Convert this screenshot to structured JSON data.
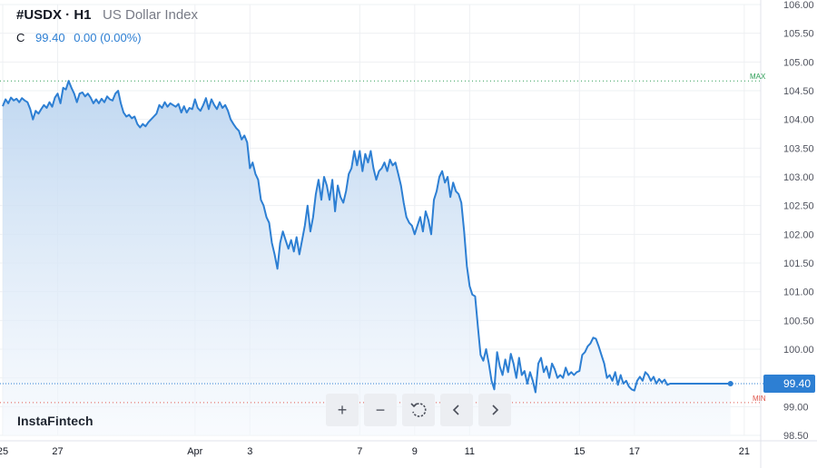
{
  "header": {
    "symbol": "#USDX · H1",
    "description": "US Dollar Index",
    "close_label": "C",
    "close_value": "99.40",
    "change": "0.00 (0.00%)"
  },
  "brand": "InstaFintech",
  "markers": {
    "max_label": "MAX",
    "min_label": "MIN",
    "last_price": "99.40"
  },
  "toolbar": {
    "buttons": [
      {
        "name": "zoom-in-button",
        "glyph": "+"
      },
      {
        "name": "zoom-out-button",
        "glyph": "−"
      },
      {
        "name": "reset-button",
        "icon": "reset-icon"
      },
      {
        "name": "scroll-left-button",
        "icon": "chevron-left-icon"
      },
      {
        "name": "scroll-right-button",
        "icon": "chevron-right-icon"
      }
    ]
  },
  "colors": {
    "line": "#2d7fd3",
    "area_top": "#bcd5f0",
    "area_bottom": "#f4f8fd",
    "grid": "#eef0f3",
    "max": "#2e9e57",
    "min": "#e0584d"
  },
  "chart_data": {
    "type": "area",
    "y_ticks": [
      "106.00",
      "105.50",
      "105.00",
      "104.50",
      "104.00",
      "103.50",
      "103.00",
      "102.50",
      "102.00",
      "101.50",
      "101.00",
      "100.50",
      "100.00",
      "99.50",
      "99.00",
      "98.50"
    ],
    "x_ticks": [
      {
        "day": 0,
        "label": "25"
      },
      {
        "day": 2,
        "label": "27"
      },
      {
        "day": 7,
        "label": "Apr"
      },
      {
        "day": 9,
        "label": "3"
      },
      {
        "day": 13,
        "label": "7"
      },
      {
        "day": 15,
        "label": "9"
      },
      {
        "day": 17,
        "label": "11"
      },
      {
        "day": 21,
        "label": "15"
      },
      {
        "day": 23,
        "label": "17"
      },
      {
        "day": 27,
        "label": "21"
      }
    ],
    "ylim": [
      98.5,
      106.0
    ],
    "xlim": [
      -0.1,
      27.6
    ],
    "max_level": 104.67,
    "min_level": 99.07,
    "last_value": 99.4,
    "series": [
      {
        "points": [
          [
            0.0,
            104.23
          ],
          [
            0.1,
            104.35
          ],
          [
            0.2,
            104.28
          ],
          [
            0.3,
            104.38
          ],
          [
            0.4,
            104.33
          ],
          [
            0.5,
            104.36
          ],
          [
            0.6,
            104.3
          ],
          [
            0.7,
            104.37
          ],
          [
            0.8,
            104.33
          ],
          [
            0.9,
            104.3
          ],
          [
            1.0,
            104.18
          ],
          [
            1.1,
            104.0
          ],
          [
            1.2,
            104.15
          ],
          [
            1.3,
            104.1
          ],
          [
            1.4,
            104.18
          ],
          [
            1.5,
            104.25
          ],
          [
            1.6,
            104.2
          ],
          [
            1.7,
            104.3
          ],
          [
            1.8,
            104.22
          ],
          [
            1.9,
            104.38
          ],
          [
            2.0,
            104.45
          ],
          [
            2.1,
            104.28
          ],
          [
            2.2,
            104.55
          ],
          [
            2.3,
            104.52
          ],
          [
            2.4,
            104.67
          ],
          [
            2.5,
            104.55
          ],
          [
            2.6,
            104.45
          ],
          [
            2.7,
            104.3
          ],
          [
            2.8,
            104.45
          ],
          [
            2.9,
            104.47
          ],
          [
            3.0,
            104.4
          ],
          [
            3.1,
            104.45
          ],
          [
            3.2,
            104.38
          ],
          [
            3.3,
            104.28
          ],
          [
            3.4,
            104.35
          ],
          [
            3.5,
            104.28
          ],
          [
            3.6,
            104.36
          ],
          [
            3.7,
            104.3
          ],
          [
            3.8,
            104.4
          ],
          [
            3.9,
            104.35
          ],
          [
            4.0,
            104.33
          ],
          [
            4.1,
            104.45
          ],
          [
            4.2,
            104.5
          ],
          [
            4.3,
            104.28
          ],
          [
            4.4,
            104.12
          ],
          [
            4.5,
            104.05
          ],
          [
            4.6,
            104.08
          ],
          [
            4.7,
            104.02
          ],
          [
            4.8,
            104.05
          ],
          [
            4.9,
            103.92
          ],
          [
            5.0,
            103.86
          ],
          [
            5.1,
            103.92
          ],
          [
            5.2,
            103.88
          ],
          [
            5.3,
            103.95
          ],
          [
            5.4,
            104.0
          ],
          [
            5.5,
            104.05
          ],
          [
            5.6,
            104.1
          ],
          [
            5.7,
            104.25
          ],
          [
            5.8,
            104.2
          ],
          [
            5.9,
            104.3
          ],
          [
            6.0,
            104.22
          ],
          [
            6.1,
            104.28
          ],
          [
            6.2,
            104.25
          ],
          [
            6.3,
            104.22
          ],
          [
            6.4,
            104.27
          ],
          [
            6.5,
            104.12
          ],
          [
            6.6,
            104.23
          ],
          [
            6.7,
            104.12
          ],
          [
            6.8,
            104.2
          ],
          [
            6.9,
            104.18
          ],
          [
            7.0,
            104.35
          ],
          [
            7.1,
            104.2
          ],
          [
            7.2,
            104.15
          ],
          [
            7.3,
            104.25
          ],
          [
            7.4,
            104.37
          ],
          [
            7.5,
            104.18
          ],
          [
            7.6,
            104.35
          ],
          [
            7.7,
            104.25
          ],
          [
            7.8,
            104.18
          ],
          [
            7.9,
            104.3
          ],
          [
            8.0,
            104.2
          ],
          [
            8.1,
            104.25
          ],
          [
            8.2,
            104.15
          ],
          [
            8.3,
            104.0
          ],
          [
            8.4,
            103.92
          ],
          [
            8.5,
            103.85
          ],
          [
            8.6,
            103.8
          ],
          [
            8.7,
            103.65
          ],
          [
            8.8,
            103.72
          ],
          [
            8.9,
            103.6
          ],
          [
            9.0,
            103.15
          ],
          [
            9.1,
            103.25
          ],
          [
            9.2,
            103.05
          ],
          [
            9.3,
            102.95
          ],
          [
            9.4,
            102.6
          ],
          [
            9.5,
            102.5
          ],
          [
            9.6,
            102.3
          ],
          [
            9.7,
            102.2
          ],
          [
            9.8,
            101.85
          ],
          [
            9.9,
            101.65
          ],
          [
            10.0,
            101.4
          ],
          [
            10.1,
            101.85
          ],
          [
            10.2,
            102.05
          ],
          [
            10.3,
            101.9
          ],
          [
            10.4,
            101.75
          ],
          [
            10.5,
            101.9
          ],
          [
            10.6,
            101.7
          ],
          [
            10.7,
            101.95
          ],
          [
            10.8,
            101.65
          ],
          [
            10.9,
            101.9
          ],
          [
            11.0,
            102.15
          ],
          [
            11.1,
            102.5
          ],
          [
            11.2,
            102.05
          ],
          [
            11.3,
            102.3
          ],
          [
            11.4,
            102.7
          ],
          [
            11.5,
            102.95
          ],
          [
            11.6,
            102.6
          ],
          [
            11.7,
            103.0
          ],
          [
            11.8,
            102.85
          ],
          [
            11.9,
            102.6
          ],
          [
            12.0,
            102.95
          ],
          [
            12.1,
            102.4
          ],
          [
            12.2,
            102.85
          ],
          [
            12.3,
            102.65
          ],
          [
            12.4,
            102.55
          ],
          [
            12.5,
            102.75
          ],
          [
            12.6,
            103.05
          ],
          [
            12.7,
            103.15
          ],
          [
            12.8,
            103.45
          ],
          [
            12.9,
            103.2
          ],
          [
            13.0,
            103.45
          ],
          [
            13.1,
            103.1
          ],
          [
            13.2,
            103.4
          ],
          [
            13.3,
            103.25
          ],
          [
            13.4,
            103.45
          ],
          [
            13.5,
            103.15
          ],
          [
            13.6,
            102.95
          ],
          [
            13.7,
            103.1
          ],
          [
            13.8,
            103.15
          ],
          [
            13.9,
            103.25
          ],
          [
            14.0,
            103.1
          ],
          [
            14.1,
            103.3
          ],
          [
            14.2,
            103.2
          ],
          [
            14.3,
            103.25
          ],
          [
            14.4,
            103.05
          ],
          [
            14.5,
            102.85
          ],
          [
            14.6,
            102.55
          ],
          [
            14.7,
            102.3
          ],
          [
            14.8,
            102.2
          ],
          [
            14.9,
            102.15
          ],
          [
            15.0,
            102.0
          ],
          [
            15.1,
            102.15
          ],
          [
            15.2,
            102.3
          ],
          [
            15.3,
            102.05
          ],
          [
            15.4,
            102.4
          ],
          [
            15.5,
            102.25
          ],
          [
            15.6,
            102.0
          ],
          [
            15.7,
            102.6
          ],
          [
            15.8,
            102.75
          ],
          [
            15.9,
            103.0
          ],
          [
            16.0,
            103.1
          ],
          [
            16.1,
            102.9
          ],
          [
            16.2,
            103.0
          ],
          [
            16.3,
            102.65
          ],
          [
            16.4,
            102.9
          ],
          [
            16.5,
            102.75
          ],
          [
            16.6,
            102.7
          ],
          [
            16.7,
            102.55
          ],
          [
            16.8,
            102.05
          ],
          [
            16.9,
            101.45
          ],
          [
            17.0,
            101.1
          ],
          [
            17.1,
            100.95
          ],
          [
            17.2,
            100.92
          ],
          [
            17.3,
            100.4
          ],
          [
            17.4,
            99.9
          ],
          [
            17.5,
            99.8
          ],
          [
            17.6,
            100.0
          ],
          [
            17.7,
            99.75
          ],
          [
            17.8,
            99.45
          ],
          [
            17.9,
            99.3
          ],
          [
            18.0,
            99.95
          ],
          [
            18.1,
            99.7
          ],
          [
            18.2,
            99.55
          ],
          [
            18.3,
            99.82
          ],
          [
            18.4,
            99.6
          ],
          [
            18.5,
            99.92
          ],
          [
            18.6,
            99.75
          ],
          [
            18.7,
            99.5
          ],
          [
            18.8,
            99.85
          ],
          [
            18.9,
            99.55
          ],
          [
            19.0,
            99.62
          ],
          [
            19.1,
            99.4
          ],
          [
            19.2,
            99.6
          ],
          [
            19.3,
            99.45
          ],
          [
            19.4,
            99.25
          ],
          [
            19.5,
            99.75
          ],
          [
            19.6,
            99.85
          ],
          [
            19.7,
            99.6
          ],
          [
            19.8,
            99.7
          ],
          [
            19.9,
            99.5
          ],
          [
            20.0,
            99.75
          ],
          [
            20.1,
            99.65
          ],
          [
            20.2,
            99.5
          ],
          [
            20.3,
            99.55
          ],
          [
            20.4,
            99.5
          ],
          [
            20.5,
            99.68
          ],
          [
            20.6,
            99.55
          ],
          [
            20.7,
            99.6
          ],
          [
            20.8,
            99.55
          ],
          [
            20.9,
            99.6
          ],
          [
            21.0,
            99.62
          ],
          [
            21.1,
            99.9
          ],
          [
            21.2,
            99.95
          ],
          [
            21.3,
            100.05
          ],
          [
            21.4,
            100.1
          ],
          [
            21.5,
            100.2
          ],
          [
            21.6,
            100.18
          ],
          [
            21.7,
            100.05
          ],
          [
            21.8,
            99.9
          ],
          [
            21.9,
            99.75
          ],
          [
            22.0,
            99.5
          ],
          [
            22.1,
            99.55
          ],
          [
            22.2,
            99.45
          ],
          [
            22.3,
            99.6
          ],
          [
            22.4,
            99.38
          ],
          [
            22.5,
            99.55
          ],
          [
            22.6,
            99.4
          ],
          [
            22.7,
            99.45
          ],
          [
            22.8,
            99.35
          ],
          [
            22.9,
            99.3
          ],
          [
            23.0,
            99.28
          ],
          [
            23.1,
            99.45
          ],
          [
            23.2,
            99.52
          ],
          [
            23.3,
            99.45
          ],
          [
            23.4,
            99.6
          ],
          [
            23.5,
            99.55
          ],
          [
            23.6,
            99.45
          ],
          [
            23.7,
            99.52
          ],
          [
            23.8,
            99.4
          ],
          [
            23.9,
            99.48
          ],
          [
            24.0,
            99.42
          ],
          [
            24.1,
            99.47
          ],
          [
            24.2,
            99.38
          ],
          [
            24.3,
            99.4
          ],
          [
            24.6,
            99.4
          ],
          [
            25.0,
            99.4
          ],
          [
            25.5,
            99.4
          ],
          [
            26.0,
            99.4
          ],
          [
            26.5,
            99.4
          ]
        ]
      }
    ]
  }
}
